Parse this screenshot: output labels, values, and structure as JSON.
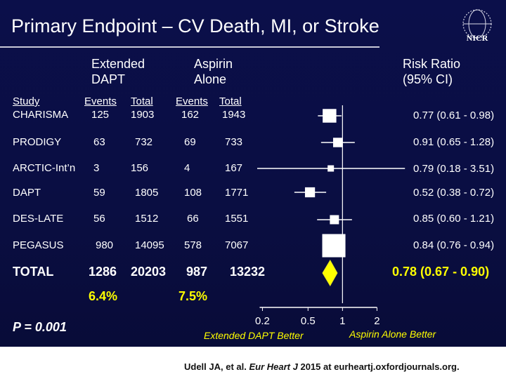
{
  "title": "Primary Endpoint – CV Death, MI, or Stroke",
  "logo_text": "NICR",
  "headers": {
    "extended": [
      "Extended",
      "DAPT"
    ],
    "aspirin": [
      "Aspirin",
      "Alone"
    ],
    "rr": [
      "Risk Ratio",
      "(95% CI)"
    ],
    "study": "Study",
    "events": "Events",
    "total": "Total",
    "events2": "Events",
    "total2": "Total"
  },
  "chart_data": {
    "type": "forest",
    "xscale": "log",
    "xlim": [
      0.18,
      3.6
    ],
    "ticks": [
      {
        "value": 0.2,
        "label": "0.2"
      },
      {
        "value": 0.5,
        "label": "0.5"
      },
      {
        "value": 1,
        "label": "1"
      },
      {
        "value": 2,
        "label": "2"
      }
    ],
    "left_caption": "Extended DAPT Better",
    "right_caption": "Aspirin Alone Better",
    "studies": [
      {
        "name": "CHARISMA",
        "ext_events": "125",
        "ext_total": "1903",
        "asp_events": "162",
        "asp_total": "1943",
        "rr": 0.77,
        "lo": 0.61,
        "hi": 0.98,
        "ci_text": "0.77 (0.61 - 0.98)",
        "weight": 3.0
      },
      {
        "name": "PRODIGY",
        "ext_events": "63",
        "ext_total": "732",
        "asp_events": "69",
        "asp_total": "733",
        "rr": 0.91,
        "lo": 0.65,
        "hi": 1.28,
        "ci_text": "0.91 (0.65 - 1.28)",
        "weight": 1.2
      },
      {
        "name": "ARCTIC-Int’n",
        "ext_events": "3",
        "ext_total": "156",
        "asp_events": "4",
        "asp_total": "167",
        "rr": 0.79,
        "lo": 0.18,
        "hi": 3.51,
        "ci_text": "0.79 (0.18 - 3.51)",
        "weight": 0.4
      },
      {
        "name": "DAPT",
        "ext_events": "59",
        "ext_total": "1805",
        "asp_events": "108",
        "asp_total": "1771",
        "rr": 0.52,
        "lo": 0.38,
        "hi": 0.72,
        "ci_text": "0.52 (0.38 - 0.72)",
        "weight": 1.4
      },
      {
        "name": "DES-LATE",
        "ext_events": "56",
        "ext_total": "1512",
        "asp_events": "66",
        "asp_total": "1551",
        "rr": 0.85,
        "lo": 0.6,
        "hi": 1.21,
        "ci_text": "0.85 (0.60 - 1.21)",
        "weight": 1.1
      },
      {
        "name": "PEGASUS",
        "ext_events": "980",
        "ext_total": "14095",
        "asp_events": "578",
        "asp_total": "7067",
        "rr": 0.84,
        "lo": 0.76,
        "hi": 0.94,
        "ci_text": "0.84 (0.76 - 0.94)",
        "weight": 10.0
      }
    ],
    "total": {
      "name": "TOTAL",
      "ext_events": "1286",
      "ext_total": "20203",
      "asp_events": "987",
      "asp_total": "13232",
      "rr": 0.78,
      "lo": 0.67,
      "hi": 0.9,
      "ci_text": "0.78 (0.67 - 0.90)",
      "ext_pct": "6.4%",
      "asp_pct": "7.5%"
    }
  },
  "p_value": "P = 0.001",
  "citation": {
    "prefix": "Udell JA, et al. ",
    "journal": "Eur Heart J",
    "suffix": " 2015 at eurheartj.oxfordjournals.org."
  },
  "colors": {
    "background": "#0a0e42",
    "marker": "#ffffff",
    "diamond": "#ffff00",
    "highlight_text": "#ffff00"
  }
}
